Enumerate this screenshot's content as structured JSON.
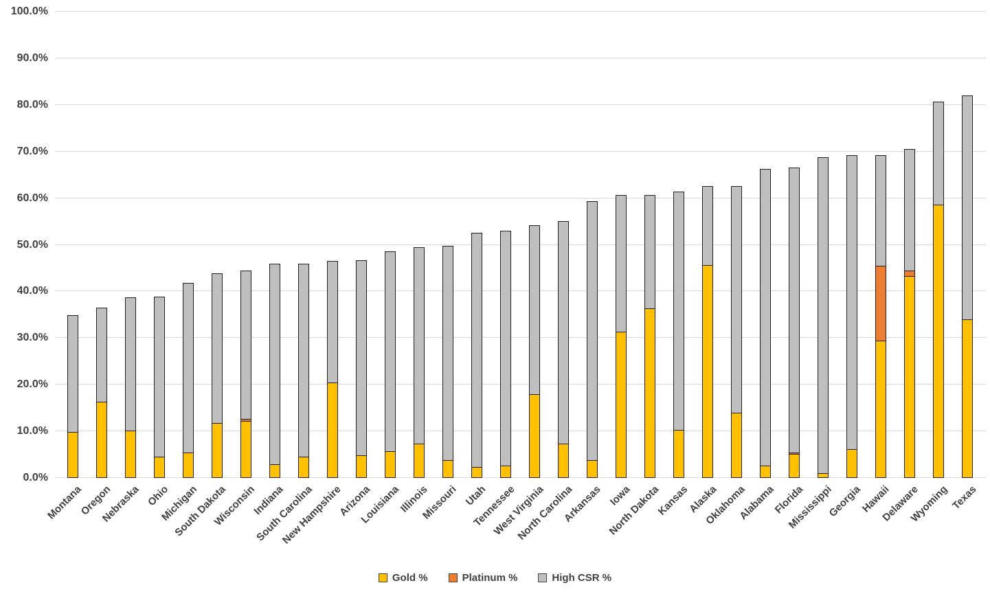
{
  "chart_data": {
    "type": "bar",
    "stacked": true,
    "title": "",
    "xlabel": "",
    "ylabel": "",
    "ylim": [
      0,
      100
    ],
    "ytick_step": 10,
    "ytick_labels": [
      "0.0%",
      "10.0%",
      "20.0%",
      "30.0%",
      "40.0%",
      "50.0%",
      "60.0%",
      "70.0%",
      "80.0%",
      "90.0%",
      "100.0%"
    ],
    "grid": true,
    "legend_position": "bottom",
    "categories": [
      "Montana",
      "Oregon",
      "Nebraska",
      "Ohio",
      "Michigan",
      "South Dakota",
      "Wisconsin",
      "Indiana",
      "South Carolina",
      "New Hampshire",
      "Arizona",
      "Louisiana",
      "Illinois",
      "Missouri",
      "Utah",
      "Tennessee",
      "West Virginia",
      "North Carolina",
      "Arkansas",
      "Iowa",
      "North Dakota",
      "Kansas",
      "Alaska",
      "Oklahoma",
      "Alabama",
      "Florida",
      "Mississippi",
      "Georgia",
      "Hawaii",
      "Delaware",
      "Wyoming",
      "Texas"
    ],
    "series": [
      {
        "name": "Gold %",
        "color": "#FFC000",
        "values": [
          9.8,
          16.4,
          10.2,
          4.6,
          5.4,
          11.8,
          12.2,
          2.9,
          4.5,
          20.5,
          4.9,
          5.7,
          7.4,
          3.9,
          2.3,
          2.6,
          18.0,
          7.3,
          3.8,
          31.4,
          36.4,
          10.3,
          45.7,
          14.0,
          2.6,
          5.1,
          1.1,
          6.2,
          29.5,
          43.3,
          58.6,
          34.0
        ]
      },
      {
        "name": "Platinum %",
        "color": "#ED7D31",
        "values": [
          0,
          0,
          0,
          0,
          0,
          0,
          0.6,
          0,
          0,
          0,
          0,
          0,
          0,
          0,
          0,
          0,
          0,
          0,
          0,
          0,
          0,
          0,
          0,
          0,
          0,
          0.5,
          0,
          0,
          16.1,
          1.3,
          0,
          0
        ]
      },
      {
        "name": "High CSR %",
        "color": "#BFBFBF",
        "values": [
          25.3,
          20.3,
          28.7,
          34.5,
          36.6,
          32.3,
          32.0,
          43.2,
          41.6,
          26.2,
          41.9,
          43.1,
          42.2,
          46.1,
          50.4,
          50.5,
          36.3,
          47.9,
          55.7,
          29.4,
          24.4,
          51.3,
          17.0,
          48.7,
          63.8,
          61.3,
          67.8,
          63.1,
          23.9,
          26.3,
          22.2,
          48.2
        ]
      }
    ],
    "stack_totals": [
      35.1,
      36.7,
      38.9,
      39.1,
      42.0,
      44.1,
      44.8,
      46.1,
      46.1,
      46.7,
      46.8,
      48.8,
      49.6,
      50.0,
      52.7,
      53.1,
      54.3,
      55.2,
      59.5,
      60.8,
      60.8,
      61.6,
      62.7,
      62.7,
      66.4,
      66.9,
      68.9,
      69.3,
      69.5,
      70.9,
      80.8,
      82.2
    ]
  },
  "colors": {
    "gridline": "#d9d9d9",
    "bar_border": "#1f1f1f",
    "axis_text": "#404040",
    "background": "#ffffff"
  }
}
